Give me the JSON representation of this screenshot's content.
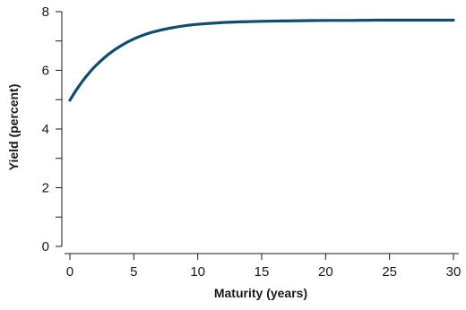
{
  "chart_data": {
    "type": "line",
    "xlabel": "Maturity (years)",
    "ylabel": "Yield (percent)",
    "xlim": [
      0,
      30
    ],
    "ylim": [
      0,
      8
    ],
    "xticks": [
      0,
      5,
      10,
      15,
      20,
      25,
      30
    ],
    "xtick_labels": [
      "0",
      "5",
      "10",
      "15",
      "20",
      "25",
      "30"
    ],
    "yticks": [
      0,
      1,
      2,
      3,
      4,
      5,
      6,
      7,
      8
    ],
    "ytick_labels": [
      "0",
      "",
      "2",
      "",
      "4",
      "",
      "6",
      "",
      "8"
    ],
    "grid": false,
    "series": [
      {
        "color": "#124e6b",
        "x": [
          0,
          0.5,
          1,
          1.5,
          2,
          3,
          4,
          5,
          6,
          7,
          8,
          9,
          10,
          12,
          14,
          16,
          18,
          20,
          22,
          24,
          26,
          28,
          30
        ],
        "y": [
          4.98,
          5.33,
          5.64,
          5.91,
          6.15,
          6.54,
          6.84,
          7.07,
          7.24,
          7.36,
          7.45,
          7.52,
          7.57,
          7.63,
          7.66,
          7.68,
          7.69,
          7.7,
          7.7,
          7.71,
          7.71,
          7.71,
          7.71
        ]
      }
    ]
  }
}
